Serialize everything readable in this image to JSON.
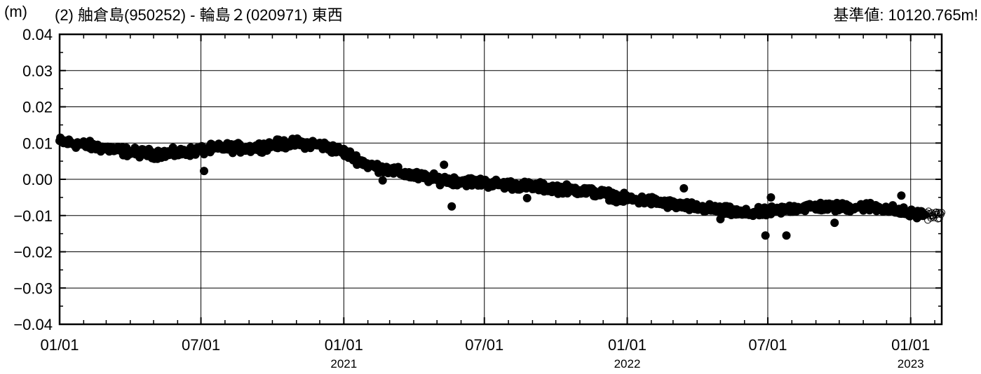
{
  "header": {
    "unit": "(m)",
    "title": "(2) 舳倉島(950252) - 輪島２(020971) 東西",
    "baseline": "基準値: 10120.765m!"
  },
  "colors": {
    "axis": "#000000",
    "grid": "#000000",
    "point": "#000000",
    "background": "#ffffff"
  },
  "chart_data": {
    "type": "scatter",
    "title": "(2) 舳倉島(950252) - 輪島２(020971) 東西",
    "ylabel": "(m)",
    "xlabel": "",
    "ylim": [
      -0.04,
      0.04
    ],
    "xlim": [
      "2020-01-01",
      "2023-02-10"
    ],
    "y_ticks": [
      "0.04",
      "0.03",
      "0.02",
      "0.01",
      "0.00",
      "−0.01",
      "−0.02",
      "−0.03",
      "−0.04"
    ],
    "x_ticks": [
      {
        "date": "2020-01-01",
        "label": "01/01",
        "year": ""
      },
      {
        "date": "2020-07-01",
        "label": "07/01",
        "year": ""
      },
      {
        "date": "2021-01-01",
        "label": "01/01",
        "year": "2021"
      },
      {
        "date": "2021-07-01",
        "label": "07/01",
        "year": ""
      },
      {
        "date": "2022-01-01",
        "label": "01/01",
        "year": "2022"
      },
      {
        "date": "2022-07-01",
        "label": "07/01",
        "year": ""
      },
      {
        "date": "2023-01-01",
        "label": "01/01",
        "year": "2023"
      }
    ],
    "grid": true,
    "trend": [
      [
        "2020-01-01",
        0.0105
      ],
      [
        "2020-02-01",
        0.0095
      ],
      [
        "2020-03-01",
        0.0085
      ],
      [
        "2020-04-01",
        0.0075
      ],
      [
        "2020-05-01",
        0.007
      ],
      [
        "2020-06-01",
        0.0072
      ],
      [
        "2020-07-01",
        0.008
      ],
      [
        "2020-08-01",
        0.0088
      ],
      [
        "2020-09-01",
        0.0085
      ],
      [
        "2020-10-01",
        0.0095
      ],
      [
        "2020-11-01",
        0.01
      ],
      [
        "2020-12-01",
        0.0095
      ],
      [
        "2021-01-01",
        0.0075
      ],
      [
        "2021-02-01",
        0.004
      ],
      [
        "2021-03-01",
        0.0025
      ],
      [
        "2021-04-01",
        0.001
      ],
      [
        "2021-05-01",
        0.0
      ],
      [
        "2021-06-01",
        -0.0005
      ],
      [
        "2021-07-01",
        -0.001
      ],
      [
        "2021-08-01",
        -0.0015
      ],
      [
        "2021-09-01",
        -0.002
      ],
      [
        "2021-10-01",
        -0.0025
      ],
      [
        "2021-11-01",
        -0.003
      ],
      [
        "2021-12-01",
        -0.004
      ],
      [
        "2022-01-01",
        -0.0055
      ],
      [
        "2022-02-01",
        -0.006
      ],
      [
        "2022-03-01",
        -0.007
      ],
      [
        "2022-04-01",
        -0.0078
      ],
      [
        "2022-05-01",
        -0.0085
      ],
      [
        "2022-06-01",
        -0.0095
      ],
      [
        "2022-07-01",
        -0.009
      ],
      [
        "2022-08-01",
        -0.008
      ],
      [
        "2022-09-01",
        -0.0075
      ],
      [
        "2022-10-01",
        -0.0078
      ],
      [
        "2022-11-01",
        -0.0075
      ],
      [
        "2022-12-01",
        -0.008
      ],
      [
        "2023-01-01",
        -0.0095
      ],
      [
        "2023-02-10",
        -0.01
      ]
    ],
    "outliers": [
      [
        "2020-07-05",
        0.0023
      ],
      [
        "2021-05-20",
        -0.0075
      ],
      [
        "2021-05-10",
        0.004
      ],
      [
        "2021-02-20",
        -0.0003
      ],
      [
        "2021-08-25",
        -0.0052
      ],
      [
        "2022-06-28",
        -0.0155
      ],
      [
        "2022-07-25",
        -0.0155
      ],
      [
        "2022-05-01",
        -0.011
      ],
      [
        "2022-09-25",
        -0.012
      ],
      [
        "2022-12-20",
        -0.0045
      ],
      [
        "2022-07-05",
        -0.005
      ],
      [
        "2022-03-15",
        -0.0025
      ]
    ],
    "noise": 0.0012,
    "open_marker_start": "2023-01-20",
    "marker": "filled circle (open circle for newest data)"
  }
}
